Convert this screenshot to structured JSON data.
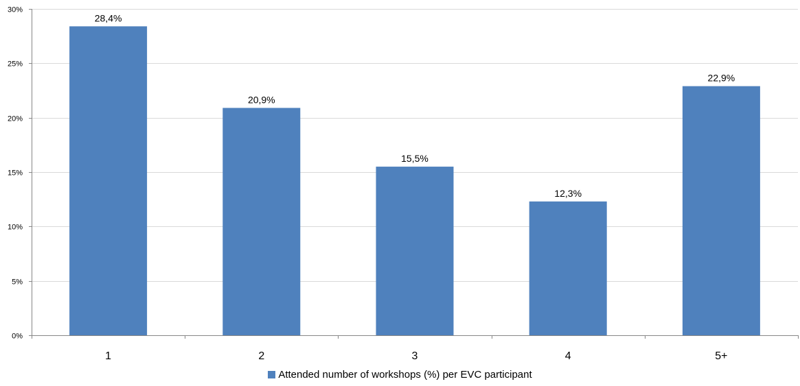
{
  "chart_data": {
    "type": "bar",
    "categories": [
      "1",
      "2",
      "3",
      "4",
      "5+"
    ],
    "series": [
      {
        "name": "Attended number of workshops (%) per EVC participant",
        "values": [
          28.4,
          20.9,
          15.5,
          12.3,
          22.9
        ],
        "data_labels": [
          "28,4%",
          "20,9%",
          "15,5%",
          "12,3%",
          "22,9%"
        ],
        "color": "#4f81bd"
      }
    ],
    "y_ticks": [
      0,
      5,
      10,
      15,
      20,
      25,
      30
    ],
    "y_tick_labels": [
      "0%",
      "5%",
      "10%",
      "15%",
      "20%",
      "25%",
      "30%"
    ],
    "ylim": [
      0,
      30
    ],
    "grid": true,
    "legend_position": "bottom"
  }
}
